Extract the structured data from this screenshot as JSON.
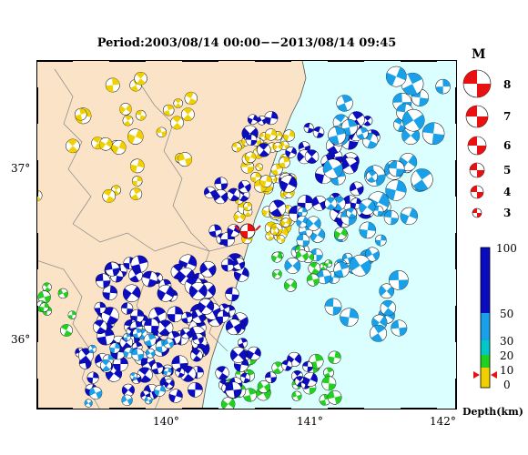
{
  "title": "Period:2003/08/14 00:00−−2013/08/14 09:45",
  "lon_ticks": [
    "140°",
    "141°",
    "142°"
  ],
  "lat_ticks": [
    "37°",
    "36°"
  ],
  "magnitude": {
    "label": "M",
    "scale": [
      "8",
      "7",
      "6",
      "5",
      "4",
      "3"
    ]
  },
  "depth_scale": {
    "label": "Depth(km)",
    "ticks": [
      "100",
      "50",
      "30",
      "20",
      "10",
      "0"
    ],
    "colors": {
      "deep": "#0b0bbf",
      "mid": "#1aa0e8",
      "shallow2": "#00c8c8",
      "shallow": "#22d022",
      "surface": "#f0d000"
    }
  },
  "colors": {
    "land": "#fbe3c7",
    "sea": "#dbffff",
    "marker": "#e81010"
  }
}
